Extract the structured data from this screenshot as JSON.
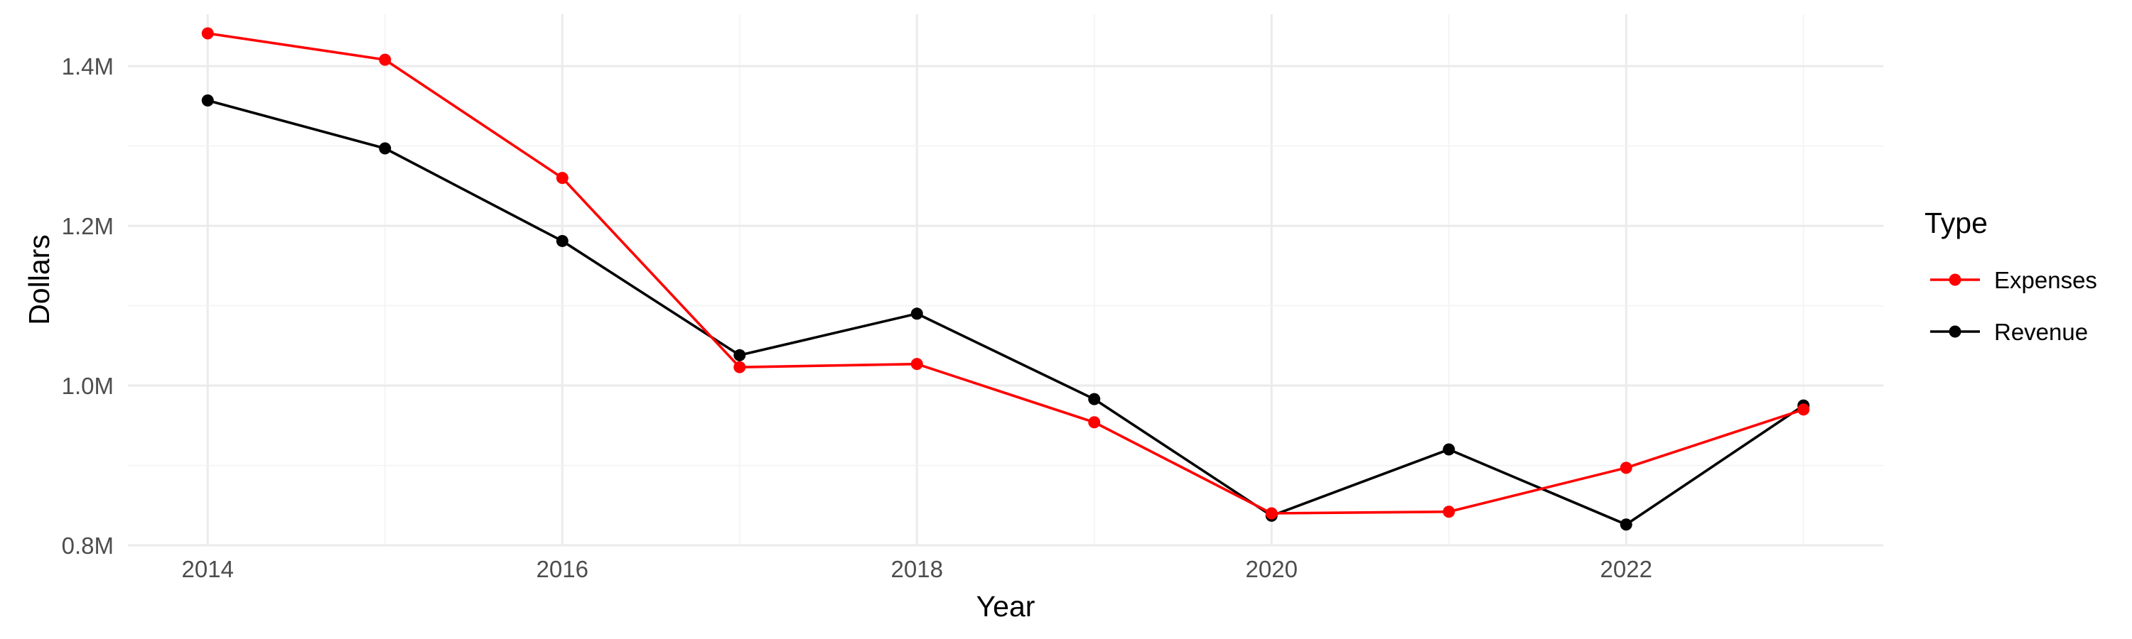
{
  "chart_data": {
    "type": "line",
    "xlabel": "Year",
    "ylabel": "Dollars",
    "xlim": [
      2013.55,
      2023.45
    ],
    "ylim": [
      0.8,
      1.465
    ],
    "x_ticks": [
      2014,
      2016,
      2018,
      2020,
      2022
    ],
    "y_ticks": [
      {
        "value": 0.8,
        "label": "0.8M"
      },
      {
        "value": 1.0,
        "label": "1.0M"
      },
      {
        "value": 1.2,
        "label": "1.2M"
      },
      {
        "value": 1.4,
        "label": "1.4M"
      }
    ],
    "y_unit": "millions of dollars",
    "grid": true,
    "legend": {
      "title": "Type",
      "position": "right"
    },
    "x": [
      2014,
      2015,
      2016,
      2017,
      2018,
      2019,
      2020,
      2021,
      2022,
      2023
    ],
    "series": [
      {
        "name": "Expenses",
        "color": "#ff0000",
        "values": [
          1.441,
          1.408,
          1.26,
          1.023,
          1.027,
          0.954,
          0.84,
          0.842,
          0.897,
          0.97
        ]
      },
      {
        "name": "Revenue",
        "color": "#000000",
        "values": [
          1.357,
          1.297,
          1.181,
          1.038,
          1.09,
          0.983,
          0.837,
          0.92,
          0.826,
          0.975
        ]
      }
    ]
  }
}
